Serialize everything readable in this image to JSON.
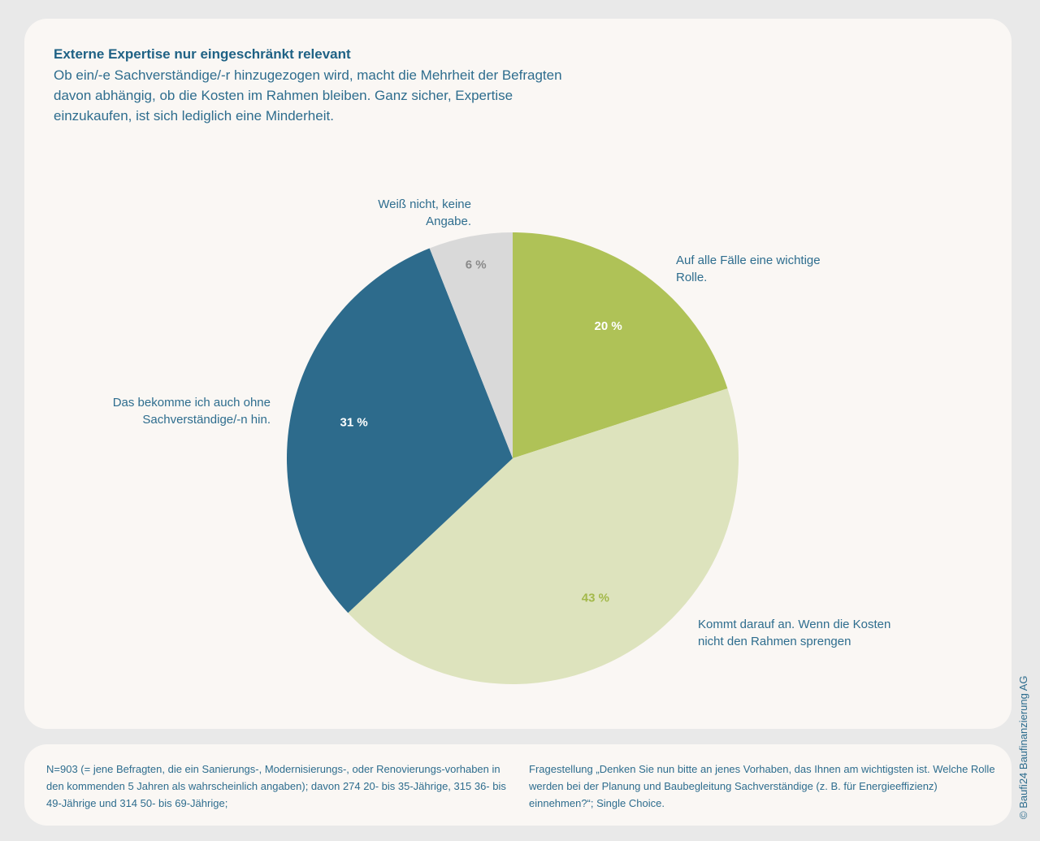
{
  "header": {
    "title": "Externe Expertise nur eingeschränkt relevant",
    "subtitle": "Ob ein/-e Sachverständige/-r hinzugezogen wird, macht die Mehrheit der Befragten davon abhängig, ob die Kosten im Rahmen bleiben. Ganz sicher, Expertise einzukaufen, ist sich lediglich eine Minderheit."
  },
  "chart_data": {
    "type": "pie",
    "start_angle": "12 o'clock",
    "direction": "clockwise",
    "legend": "none",
    "slices": [
      {
        "label": "Auf alle Fälle eine wichtige Rolle.",
        "value": 20,
        "value_label": "20 %",
        "color": "#afc257",
        "value_label_color": "#ffffff"
      },
      {
        "label": "Kommt darauf an. Wenn die Kosten nicht den Rahmen sprengen",
        "value": 43,
        "value_label": "43 %",
        "color": "#dde3bd",
        "value_label_color": "#a3b94a"
      },
      {
        "label": "Das bekomme ich auch ohne Sachverständige/-n hin.",
        "value": 31,
        "value_label": "31 %",
        "color": "#2d6b8c",
        "value_label_color": "#ffffff"
      },
      {
        "label": "Weiß nicht, keine Angabe.",
        "value": 6,
        "value_label": "6 %",
        "color": "#d9d9d9",
        "value_label_color": "#8a8a8a"
      }
    ]
  },
  "footer": {
    "sample_note": "N=903 (= jene Befragten, die ein Sanierungs-, Modernisierungs-, oder Renovierungs-vorhaben in den kommenden 5 Jahren als wahrscheinlich angaben); davon 274 20- bis 35-Jährige, 315 36- bis 49-Jährige und 314 50- bis 69-Jährige;",
    "question_note": "Fragestellung „Denken Sie nun bitte an jenes Vorhaben, das Ihnen am wichtigsten ist. Welche Rolle werden bei der Planung und Baubegleitung Sachverständige (z. B. für Energieeffizienz) einnehmen?“; Single Choice.",
    "copyright": "© Baufi24 Baufinanzierung AG"
  }
}
